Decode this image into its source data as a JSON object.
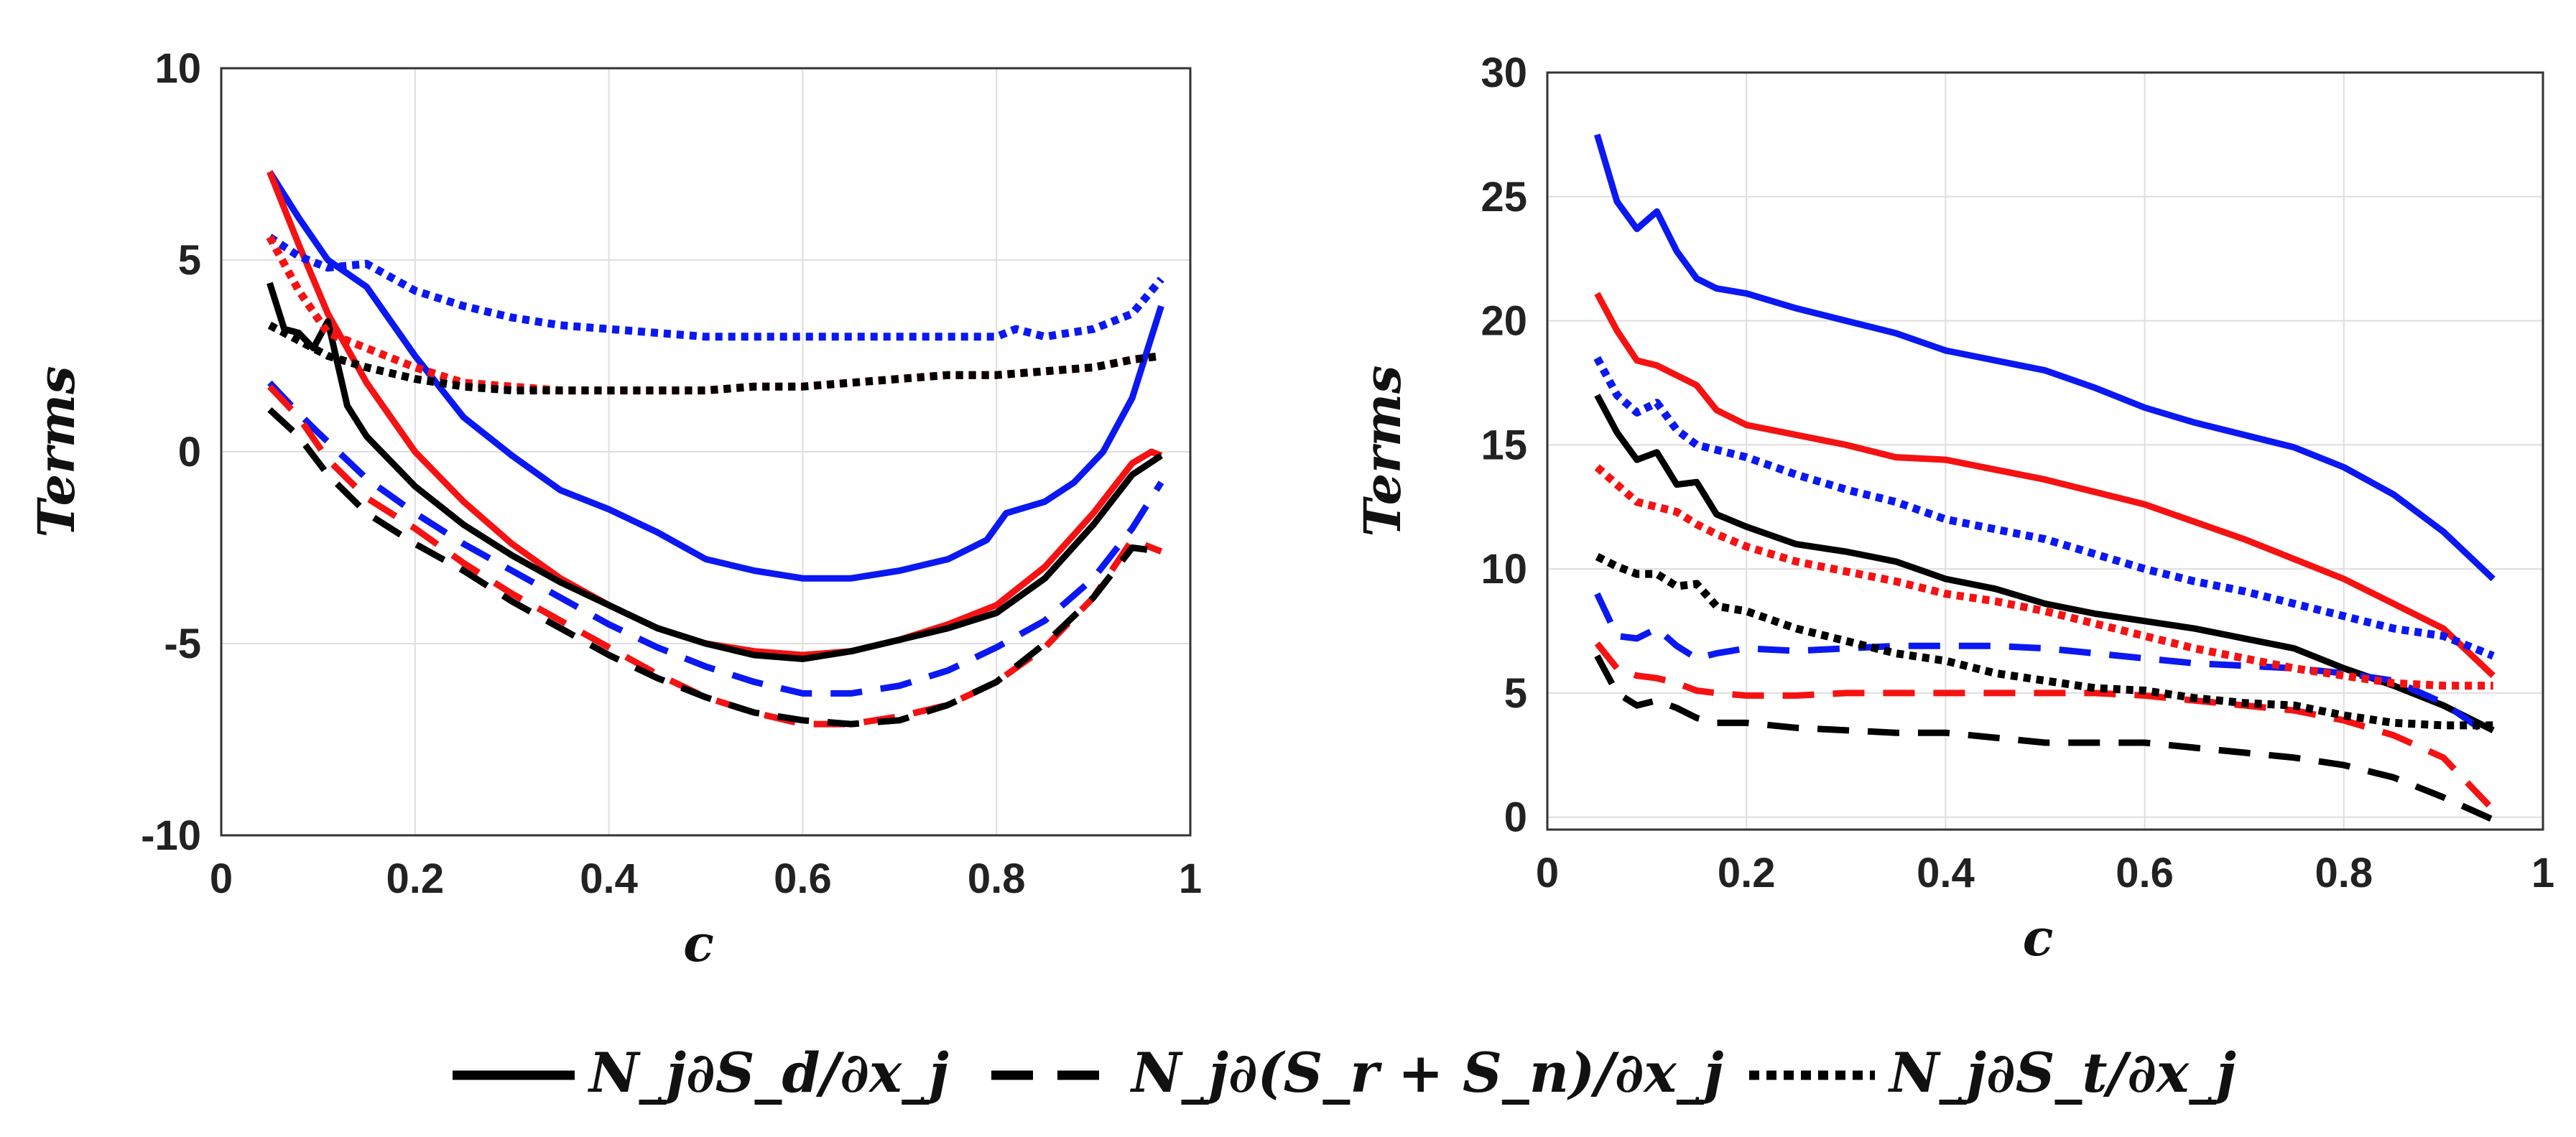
{
  "colors": {
    "blue": "#0b18f2",
    "red": "#f51212",
    "black": "#000000"
  },
  "legend": [
    {
      "label": "N_j∂S_d/∂x_j",
      "dash": "solid",
      "color": "#000000"
    },
    {
      "label": "N_j∂(S_r + S_n)/∂x_j",
      "dash": "dashed",
      "color": "#000000"
    },
    {
      "label": "N_j∂S_t/∂x_j",
      "dash": "dotted",
      "color": "#000000"
    }
  ],
  "chart_data": [
    {
      "type": "line",
      "xlabel": "c",
      "ylabel": "Terms",
      "xlim": [
        0,
        1
      ],
      "ylim": [
        -10,
        10
      ],
      "xticks": [
        0,
        0.2,
        0.4,
        0.6,
        0.8,
        1
      ],
      "xtick_labels": [
        "0",
        "0.2",
        "0.4",
        "0.6",
        "0.8",
        "1"
      ],
      "yticks": [
        -10,
        -5,
        0,
        5,
        10
      ],
      "ytick_labels": [
        "-10",
        "-5",
        "0",
        "5",
        "10"
      ],
      "grid": true,
      "series": [
        {
          "name": "blue solid",
          "color": "#0b18f2",
          "dash": "solid",
          "x": [
            0.05,
            0.08,
            0.11,
            0.15,
            0.2,
            0.25,
            0.3,
            0.35,
            0.4,
            0.45,
            0.5,
            0.55,
            0.6,
            0.65,
            0.7,
            0.75,
            0.79,
            0.81,
            0.85,
            0.88,
            0.91,
            0.94,
            0.97
          ],
          "y": [
            7.3,
            6.1,
            5.0,
            4.3,
            2.5,
            0.9,
            -0.1,
            -1.0,
            -1.5,
            -2.1,
            -2.8,
            -3.1,
            -3.3,
            -3.3,
            -3.1,
            -2.8,
            -2.3,
            -1.6,
            -1.3,
            -0.8,
            0.0,
            1.4,
            3.8
          ]
        },
        {
          "name": "red solid",
          "color": "#f51212",
          "dash": "solid",
          "x": [
            0.05,
            0.08,
            0.11,
            0.15,
            0.2,
            0.25,
            0.3,
            0.35,
            0.4,
            0.45,
            0.5,
            0.55,
            0.6,
            0.65,
            0.7,
            0.75,
            0.8,
            0.85,
            0.9,
            0.94,
            0.96,
            0.97
          ],
          "y": [
            7.3,
            5.4,
            3.6,
            1.8,
            0.0,
            -1.3,
            -2.4,
            -3.3,
            -4.0,
            -4.6,
            -5.0,
            -5.2,
            -5.3,
            -5.2,
            -4.9,
            -4.5,
            -4.0,
            -3.0,
            -1.6,
            -0.3,
            0.0,
            -0.1
          ]
        },
        {
          "name": "black solid",
          "color": "#000000",
          "dash": "solid",
          "x": [
            0.05,
            0.065,
            0.08,
            0.095,
            0.11,
            0.13,
            0.15,
            0.2,
            0.25,
            0.3,
            0.35,
            0.4,
            0.45,
            0.5,
            0.55,
            0.6,
            0.65,
            0.7,
            0.75,
            0.8,
            0.85,
            0.9,
            0.94,
            0.97
          ],
          "y": [
            4.4,
            3.2,
            3.1,
            2.7,
            3.4,
            1.2,
            0.4,
            -0.9,
            -1.9,
            -2.7,
            -3.4,
            -4.0,
            -4.6,
            -5.0,
            -5.3,
            -5.4,
            -5.2,
            -4.9,
            -4.6,
            -4.2,
            -3.3,
            -1.9,
            -0.6,
            -0.1
          ]
        },
        {
          "name": "blue dashed",
          "color": "#0b18f2",
          "dash": "dashed",
          "x": [
            0.05,
            0.08,
            0.1,
            0.15,
            0.2,
            0.25,
            0.3,
            0.35,
            0.4,
            0.45,
            0.5,
            0.55,
            0.6,
            0.65,
            0.7,
            0.75,
            0.8,
            0.85,
            0.9,
            0.94,
            0.97
          ],
          "y": [
            1.8,
            1.0,
            0.5,
            -0.7,
            -1.6,
            -2.4,
            -3.1,
            -3.8,
            -4.5,
            -5.1,
            -5.6,
            -6.0,
            -6.3,
            -6.3,
            -6.1,
            -5.7,
            -5.1,
            -4.4,
            -3.3,
            -2.0,
            -0.8
          ]
        },
        {
          "name": "red dashed",
          "color": "#f51212",
          "dash": "dashed",
          "x": [
            0.05,
            0.08,
            0.11,
            0.15,
            0.2,
            0.25,
            0.3,
            0.35,
            0.4,
            0.45,
            0.5,
            0.55,
            0.6,
            0.65,
            0.7,
            0.75,
            0.8,
            0.85,
            0.9,
            0.94,
            0.97
          ],
          "y": [
            1.7,
            0.9,
            -0.2,
            -1.2,
            -2.0,
            -2.9,
            -3.7,
            -4.4,
            -5.1,
            -5.8,
            -6.4,
            -6.8,
            -7.1,
            -7.1,
            -6.9,
            -6.6,
            -6.0,
            -5.1,
            -3.8,
            -2.3,
            -2.6
          ]
        },
        {
          "name": "black dashed",
          "color": "#000000",
          "dash": "dashed",
          "x": [
            0.05,
            0.08,
            0.11,
            0.15,
            0.2,
            0.25,
            0.3,
            0.35,
            0.4,
            0.45,
            0.5,
            0.55,
            0.6,
            0.65,
            0.7,
            0.75,
            0.8,
            0.85,
            0.9,
            0.94,
            0.97
          ],
          "y": [
            1.1,
            0.4,
            -0.6,
            -1.6,
            -2.4,
            -3.1,
            -3.9,
            -4.6,
            -5.3,
            -5.9,
            -6.4,
            -6.8,
            -7.0,
            -7.1,
            -7.0,
            -6.6,
            -6.0,
            -5.0,
            -3.8,
            -2.5,
            -2.6
          ]
        },
        {
          "name": "blue dotted",
          "color": "#0b18f2",
          "dash": "dotted",
          "x": [
            0.05,
            0.08,
            0.11,
            0.15,
            0.2,
            0.25,
            0.3,
            0.35,
            0.4,
            0.45,
            0.5,
            0.55,
            0.6,
            0.65,
            0.7,
            0.75,
            0.8,
            0.82,
            0.85,
            0.9,
            0.94,
            0.97
          ],
          "y": [
            5.6,
            5.1,
            4.8,
            4.9,
            4.2,
            3.8,
            3.5,
            3.3,
            3.2,
            3.1,
            3.0,
            3.0,
            3.0,
            3.0,
            3.0,
            3.0,
            3.0,
            3.2,
            3.0,
            3.2,
            3.6,
            4.5
          ]
        },
        {
          "name": "red dotted",
          "color": "#f51212",
          "dash": "dotted",
          "x": [
            0.05,
            0.08,
            0.11,
            0.15,
            0.2,
            0.25,
            0.3,
            0.35,
            0.4,
            0.45,
            0.5,
            0.55,
            0.6,
            0.65,
            0.7,
            0.75,
            0.8,
            0.85,
            0.9,
            0.94,
            0.97
          ],
          "y": [
            5.6,
            4.2,
            3.1,
            2.7,
            2.2,
            1.8,
            1.7,
            1.6,
            1.6,
            1.6,
            1.6,
            1.7,
            1.7,
            1.8,
            1.9,
            2.0,
            2.0,
            2.1,
            2.2,
            2.4,
            2.5
          ]
        },
        {
          "name": "black dotted",
          "color": "#000000",
          "dash": "dotted",
          "x": [
            0.05,
            0.08,
            0.11,
            0.15,
            0.2,
            0.25,
            0.3,
            0.35,
            0.4,
            0.45,
            0.5,
            0.55,
            0.6,
            0.65,
            0.7,
            0.75,
            0.8,
            0.85,
            0.9,
            0.94,
            0.97
          ],
          "y": [
            3.3,
            2.9,
            2.5,
            2.2,
            1.9,
            1.7,
            1.6,
            1.6,
            1.6,
            1.6,
            1.6,
            1.7,
            1.7,
            1.8,
            1.9,
            2.0,
            2.0,
            2.1,
            2.2,
            2.4,
            2.5
          ]
        }
      ]
    },
    {
      "type": "line",
      "xlabel": "c",
      "ylabel": "Terms",
      "xlim": [
        0,
        1
      ],
      "ylim": [
        -0.5,
        30
      ],
      "xticks": [
        0,
        0.2,
        0.4,
        0.6,
        0.8,
        1
      ],
      "xtick_labels": [
        "0",
        "0.2",
        "0.4",
        "0.6",
        "0.8",
        "1"
      ],
      "yticks": [
        0,
        5,
        10,
        15,
        20,
        25,
        30
      ],
      "ytick_labels": [
        "0",
        "5",
        "10",
        "15",
        "20",
        "25",
        "30"
      ],
      "grid": true,
      "series": [
        {
          "name": "blue solid",
          "color": "#0b18f2",
          "dash": "solid",
          "x": [
            0.05,
            0.07,
            0.09,
            0.11,
            0.13,
            0.15,
            0.17,
            0.2,
            0.25,
            0.3,
            0.35,
            0.4,
            0.45,
            0.5,
            0.55,
            0.6,
            0.65,
            0.7,
            0.75,
            0.8,
            0.85,
            0.9,
            0.95
          ],
          "y": [
            27.5,
            24.8,
            23.7,
            24.4,
            22.8,
            21.7,
            21.3,
            21.1,
            20.5,
            20.0,
            19.5,
            18.8,
            18.4,
            18.0,
            17.3,
            16.5,
            15.9,
            15.4,
            14.9,
            14.1,
            13.0,
            11.5,
            9.6
          ]
        },
        {
          "name": "red solid",
          "color": "#f51212",
          "dash": "solid",
          "x": [
            0.05,
            0.07,
            0.09,
            0.11,
            0.13,
            0.15,
            0.17,
            0.2,
            0.25,
            0.3,
            0.35,
            0.4,
            0.45,
            0.5,
            0.55,
            0.6,
            0.65,
            0.7,
            0.75,
            0.8,
            0.85,
            0.9,
            0.95
          ],
          "y": [
            21.1,
            19.6,
            18.4,
            18.2,
            17.8,
            17.4,
            16.4,
            15.8,
            15.4,
            15.0,
            14.5,
            14.4,
            14.0,
            13.6,
            13.1,
            12.6,
            11.9,
            11.2,
            10.4,
            9.6,
            8.6,
            7.6,
            5.7
          ]
        },
        {
          "name": "black solid",
          "color": "#000000",
          "dash": "solid",
          "x": [
            0.05,
            0.07,
            0.09,
            0.11,
            0.13,
            0.15,
            0.17,
            0.2,
            0.25,
            0.3,
            0.35,
            0.4,
            0.45,
            0.5,
            0.55,
            0.6,
            0.65,
            0.7,
            0.75,
            0.8,
            0.85,
            0.9,
            0.95
          ],
          "y": [
            17.0,
            15.5,
            14.4,
            14.7,
            13.4,
            13.5,
            12.2,
            11.7,
            11.0,
            10.7,
            10.3,
            9.6,
            9.2,
            8.6,
            8.2,
            7.9,
            7.6,
            7.2,
            6.8,
            6.0,
            5.3,
            4.5,
            3.5
          ]
        },
        {
          "name": "blue dashed",
          "color": "#0b18f2",
          "dash": "dashed",
          "x": [
            0.05,
            0.07,
            0.09,
            0.11,
            0.13,
            0.15,
            0.17,
            0.2,
            0.25,
            0.3,
            0.35,
            0.4,
            0.45,
            0.5,
            0.55,
            0.6,
            0.65,
            0.7,
            0.75,
            0.8,
            0.85,
            0.9,
            0.95
          ],
          "y": [
            9.0,
            7.3,
            7.2,
            7.6,
            6.9,
            6.4,
            6.6,
            6.8,
            6.7,
            6.8,
            6.9,
            6.9,
            6.9,
            6.8,
            6.6,
            6.4,
            6.2,
            6.1,
            6.0,
            5.8,
            5.5,
            4.6,
            3.2
          ]
        },
        {
          "name": "red dashed",
          "color": "#f51212",
          "dash": "dashed",
          "x": [
            0.05,
            0.07,
            0.09,
            0.11,
            0.13,
            0.15,
            0.17,
            0.2,
            0.25,
            0.3,
            0.35,
            0.4,
            0.45,
            0.5,
            0.55,
            0.6,
            0.65,
            0.7,
            0.75,
            0.8,
            0.85,
            0.9,
            0.95
          ],
          "y": [
            7.0,
            6.0,
            5.7,
            5.6,
            5.4,
            5.1,
            5.0,
            4.9,
            4.9,
            5.0,
            5.0,
            5.0,
            5.0,
            5.0,
            5.0,
            4.9,
            4.7,
            4.5,
            4.3,
            3.9,
            3.3,
            2.4,
            0.3
          ]
        },
        {
          "name": "black dashed",
          "color": "#000000",
          "dash": "dashed",
          "x": [
            0.05,
            0.07,
            0.09,
            0.11,
            0.13,
            0.15,
            0.17,
            0.2,
            0.25,
            0.3,
            0.35,
            0.4,
            0.45,
            0.5,
            0.55,
            0.6,
            0.65,
            0.7,
            0.75,
            0.8,
            0.85,
            0.9,
            0.95
          ],
          "y": [
            6.5,
            5.0,
            4.5,
            4.7,
            4.4,
            4.0,
            3.8,
            3.8,
            3.6,
            3.5,
            3.4,
            3.4,
            3.2,
            3.0,
            3.0,
            3.0,
            2.8,
            2.6,
            2.4,
            2.1,
            1.6,
            0.8,
            -0.1
          ]
        },
        {
          "name": "blue dotted",
          "color": "#0b18f2",
          "dash": "dotted",
          "x": [
            0.05,
            0.07,
            0.09,
            0.11,
            0.13,
            0.15,
            0.17,
            0.2,
            0.25,
            0.3,
            0.35,
            0.4,
            0.45,
            0.5,
            0.55,
            0.6,
            0.65,
            0.7,
            0.75,
            0.8,
            0.85,
            0.9,
            0.95
          ],
          "y": [
            18.5,
            17.0,
            16.3,
            16.7,
            15.6,
            15.0,
            14.8,
            14.5,
            13.8,
            13.2,
            12.7,
            12.0,
            11.6,
            11.2,
            10.6,
            10.0,
            9.5,
            9.1,
            8.6,
            8.1,
            7.6,
            7.3,
            6.5
          ]
        },
        {
          "name": "red dotted",
          "color": "#f51212",
          "dash": "dotted",
          "x": [
            0.05,
            0.07,
            0.09,
            0.11,
            0.13,
            0.15,
            0.17,
            0.2,
            0.25,
            0.3,
            0.35,
            0.4,
            0.45,
            0.5,
            0.55,
            0.6,
            0.65,
            0.7,
            0.75,
            0.8,
            0.85,
            0.9,
            0.95
          ],
          "y": [
            14.1,
            13.4,
            12.7,
            12.5,
            12.3,
            11.8,
            11.4,
            10.9,
            10.3,
            9.9,
            9.5,
            9.0,
            8.7,
            8.3,
            7.8,
            7.3,
            6.8,
            6.4,
            6.0,
            5.7,
            5.4,
            5.3,
            5.3
          ]
        },
        {
          "name": "black dotted",
          "color": "#000000",
          "dash": "dotted",
          "x": [
            0.05,
            0.07,
            0.09,
            0.11,
            0.13,
            0.15,
            0.17,
            0.2,
            0.25,
            0.3,
            0.35,
            0.4,
            0.45,
            0.5,
            0.55,
            0.6,
            0.65,
            0.7,
            0.75,
            0.8,
            0.85,
            0.9,
            0.95
          ],
          "y": [
            10.5,
            10.1,
            9.8,
            9.8,
            9.3,
            9.4,
            8.5,
            8.3,
            7.6,
            7.1,
            6.6,
            6.3,
            5.8,
            5.5,
            5.2,
            5.1,
            4.8,
            4.6,
            4.5,
            4.1,
            3.8,
            3.7,
            3.7
          ]
        }
      ]
    }
  ]
}
